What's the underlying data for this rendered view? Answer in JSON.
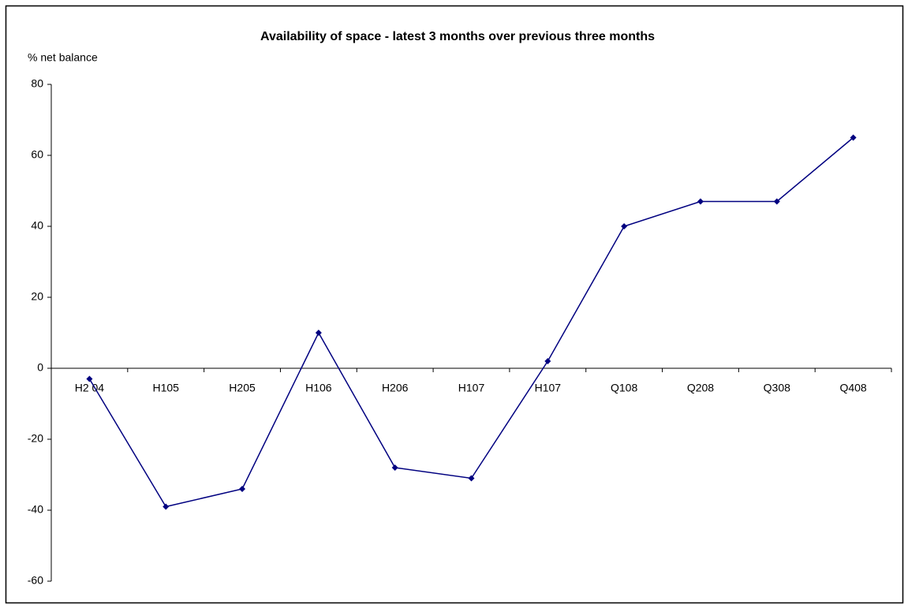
{
  "chart_data": {
    "type": "line",
    "title": "Availability of space  - latest 3 months over previous three months",
    "y_axis_label": "% net balance",
    "categories": [
      "H2 04",
      "H105",
      "H205",
      "H106",
      "H206",
      "H107",
      "H107",
      "Q108",
      "Q208",
      "Q308",
      "Q408"
    ],
    "series": [
      {
        "name": "Availability of space",
        "color": "#000080",
        "values": [
          -3,
          -39,
          -34,
          10,
          -28,
          -31,
          2,
          40,
          47,
          47,
          65
        ]
      }
    ],
    "ylim": [
      -60,
      80
    ],
    "yticks": [
      -60,
      -40,
      -20,
      0,
      20,
      40,
      60,
      80
    ],
    "grid": false
  }
}
